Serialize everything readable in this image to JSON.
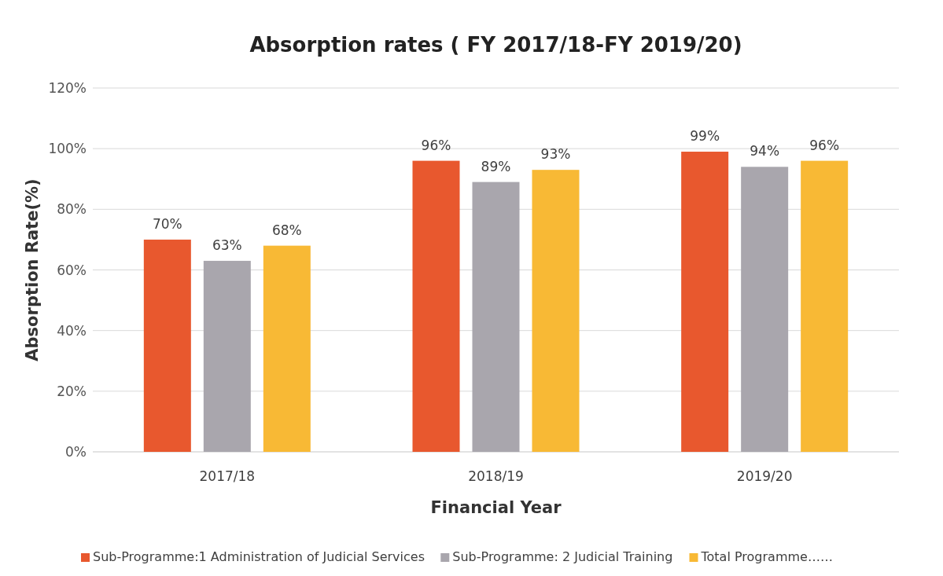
{
  "chart_data": {
    "type": "bar",
    "title": "Absorption rates ( FY 2017/18-FY 2019/20)",
    "xlabel": "Financial  Year",
    "ylabel": "Absorption Rate(%)",
    "categories": [
      "2017/18",
      "2018/19",
      "2019/20"
    ],
    "series": [
      {
        "name": "Sub-Programme:1 Administration of Judicial Services",
        "color": "#e8582e",
        "values": [
          70,
          96,
          99
        ],
        "value_labels": [
          "70%",
          "96%",
          "99%"
        ]
      },
      {
        "name": "Sub-Programme: 2 Judicial Training",
        "color": "#a9a6ad",
        "values": [
          63,
          89,
          94
        ],
        "value_labels": [
          "63%",
          "89%",
          "94%"
        ]
      },
      {
        "name": "Total Programme……",
        "color": "#f8b935",
        "values": [
          68,
          93,
          96
        ],
        "value_labels": [
          "68%",
          "93%",
          "96%"
        ]
      }
    ],
    "ylim": [
      0,
      120
    ],
    "yticks": [
      {
        "value": 0,
        "label": "0%"
      },
      {
        "value": 20,
        "label": "20%"
      },
      {
        "value": 40,
        "label": "40%"
      },
      {
        "value": 60,
        "label": "60%"
      },
      {
        "value": 80,
        "label": "80%"
      },
      {
        "value": 100,
        "label": "100%"
      },
      {
        "value": 120,
        "label": "120%"
      }
    ],
    "grid": "y",
    "legend": "bottom"
  }
}
